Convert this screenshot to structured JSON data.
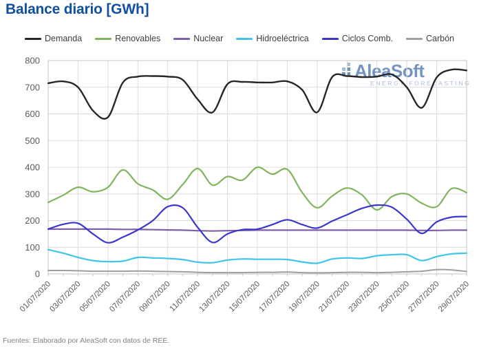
{
  "title": "Balance diario [GWh]",
  "footer": "Fuentes: Elaborado por AleaSoft con datos de REE.",
  "watermark": {
    "name": "AleaSoft",
    "subtitle": "ENERGY FORECASTING"
  },
  "colors": {
    "title": "#1150a0",
    "axis_text": "#595959",
    "grid": "#dcdcdc",
    "border": "#c3c3c3",
    "legend_text": "#3d3d3d",
    "footer_text": "#7f7f7f",
    "watermark_main": "#6186bd",
    "watermark_sub": "#9cb1d4"
  },
  "chart_data": {
    "type": "line",
    "title": "Balance diario [GWh]",
    "unit": "GWh",
    "grid": true,
    "legend_position": "top",
    "ylim": [
      0,
      800
    ],
    "y_ticks": [
      0,
      100,
      200,
      300,
      400,
      500,
      600,
      700,
      800
    ],
    "x_tick_every": 2,
    "x": [
      "01/07/2020",
      "02/07/2020",
      "03/07/2020",
      "04/07/2020",
      "05/07/2020",
      "06/07/2020",
      "07/07/2020",
      "08/07/2020",
      "09/07/2020",
      "10/07/2020",
      "11/07/2020",
      "12/07/2020",
      "13/07/2020",
      "14/07/2020",
      "15/07/2020",
      "16/07/2020",
      "17/07/2020",
      "18/07/2020",
      "19/07/2020",
      "20/07/2020",
      "21/07/2020",
      "22/07/2020",
      "23/07/2020",
      "24/07/2020",
      "25/07/2020",
      "26/07/2020",
      "27/07/2020",
      "28/07/2020",
      "29/07/2020"
    ],
    "series": [
      {
        "name": "Demanda",
        "color": "#262626",
        "width": 2.4,
        "values": [
          715,
          722,
          700,
          612,
          588,
          718,
          740,
          742,
          740,
          728,
          655,
          606,
          712,
          720,
          718,
          718,
          722,
          690,
          606,
          738,
          742,
          738,
          740,
          748,
          700,
          623,
          737,
          766,
          763
        ]
      },
      {
        "name": "Renovables",
        "color": "#7fb55c",
        "width": 2.2,
        "values": [
          268,
          295,
          325,
          308,
          325,
          390,
          338,
          315,
          280,
          335,
          395,
          333,
          365,
          352,
          400,
          374,
          392,
          305,
          248,
          292,
          322,
          296,
          240,
          290,
          300,
          265,
          252,
          320,
          305
        ]
      },
      {
        "name": "Nuclear",
        "color": "#7d5fa6",
        "width": 2.2,
        "values": [
          168,
          168,
          168,
          168,
          168,
          167,
          167,
          166,
          165,
          164,
          162,
          161,
          162,
          163,
          164,
          164,
          164,
          164,
          164,
          164,
          164,
          164,
          164,
          164,
          164,
          163,
          163,
          164,
          164
        ]
      },
      {
        "name": "Hidroeléctrica",
        "color": "#3ec5e8",
        "width": 2.2,
        "values": [
          91,
          78,
          62,
          50,
          46,
          48,
          62,
          60,
          58,
          54,
          44,
          42,
          52,
          56,
          55,
          55,
          54,
          45,
          40,
          56,
          60,
          58,
          68,
          72,
          72,
          50,
          65,
          75,
          78
        ]
      },
      {
        "name": "Ciclos Comb.",
        "color": "#3936ce",
        "width": 2.2,
        "values": [
          168,
          186,
          190,
          150,
          117,
          138,
          165,
          200,
          252,
          248,
          175,
          118,
          150,
          166,
          168,
          185,
          203,
          185,
          172,
          198,
          222,
          246,
          258,
          250,
          205,
          152,
          195,
          213,
          215
        ]
      },
      {
        "name": "Carbón",
        "color": "#9e9e9e",
        "width": 2.0,
        "values": [
          13,
          13,
          12,
          10,
          10,
          10,
          11,
          10,
          9,
          8,
          6,
          5,
          5,
          5,
          6,
          6,
          7,
          5,
          4,
          5,
          6,
          6,
          5,
          6,
          8,
          10,
          16,
          15,
          9
        ]
      }
    ]
  }
}
